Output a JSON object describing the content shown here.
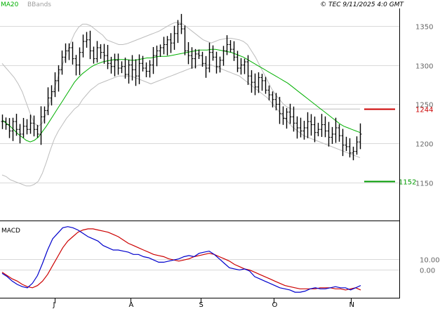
{
  "header": {
    "legend_ma": "MA20",
    "legend_bb": "BBands",
    "copyright": "© TEC 9/11/2025 4:0 GMT"
  },
  "colors": {
    "bars": "#000000",
    "ma20": "#00b000",
    "bbands": "#bdbdbd",
    "macd_line": "#0000cc",
    "signal_line": "#cc0000",
    "resistance": "#cc0000",
    "support": "#009900",
    "grid": "#d9d9d9",
    "frame": "#000000"
  },
  "chart_data": [
    {
      "type": "ohlc",
      "panel": "price",
      "x_labels": [
        "J",
        "A",
        "S",
        "O",
        "N"
      ],
      "yticks": [
        1150,
        1200,
        1250,
        1300,
        1350
      ],
      "ylim": [
        1102,
        1372
      ],
      "grid": true,
      "resistance": {
        "label": "1244",
        "value": 1244
      },
      "support": {
        "label": "1152",
        "value": 1152
      },
      "close": [
        1228,
        1224,
        1216,
        1228,
        1218,
        1212,
        1222,
        1218,
        1226,
        1218,
        1212,
        1234,
        1242,
        1258,
        1266,
        1280,
        1294,
        1310,
        1318,
        1322,
        1308,
        1300,
        1316,
        1330,
        1332,
        1318,
        1308,
        1322,
        1316,
        1312,
        1302,
        1298,
        1306,
        1296,
        1298,
        1288,
        1300,
        1294,
        1286,
        1302,
        1296,
        1292,
        1300,
        1312,
        1318,
        1322,
        1326,
        1332,
        1328,
        1340,
        1352,
        1346,
        1318,
        1312,
        1308,
        1314,
        1312,
        1302,
        1296,
        1316,
        1310,
        1298,
        1306,
        1318,
        1326,
        1320,
        1310,
        1296,
        1300,
        1304,
        1286,
        1278,
        1272,
        1284,
        1280,
        1268,
        1262,
        1256,
        1250,
        1238,
        1232,
        1240,
        1234,
        1226,
        1220,
        1216,
        1220,
        1228,
        1224,
        1214,
        1218,
        1224,
        1216,
        1208,
        1212,
        1220,
        1210,
        1198,
        1196,
        1188,
        1190,
        1202,
        1212
      ],
      "ma20": [
        1230,
        1226,
        1222,
        1217,
        1212,
        1208,
        1204,
        1202,
        1204,
        1208,
        1215,
        1222,
        1230,
        1238,
        1246,
        1254,
        1262,
        1270,
        1278,
        1284,
        1289,
        1293,
        1297,
        1300,
        1302,
        1304,
        1305,
        1306,
        1307,
        1307,
        1307,
        1307,
        1306,
        1306,
        1307,
        1308,
        1309,
        1309,
        1310,
        1311,
        1311,
        1311,
        1312,
        1313,
        1314,
        1315,
        1316,
        1317,
        1318,
        1319,
        1319,
        1319,
        1320,
        1320,
        1319,
        1318,
        1317,
        1316,
        1314,
        1312,
        1310,
        1307,
        1304,
        1301,
        1298,
        1295,
        1292,
        1289,
        1286,
        1283,
        1280,
        1277,
        1273,
        1269,
        1265,
        1261,
        1257,
        1253,
        1249,
        1245,
        1241,
        1237,
        1233,
        1229,
        1225,
        1222,
        1220,
        1218,
        1216,
        1214
      ],
      "bb_upper": [
        1302,
        1296,
        1290,
        1284,
        1276,
        1266,
        1252,
        1238,
        1226,
        1222,
        1226,
        1238,
        1254,
        1270,
        1286,
        1300,
        1314,
        1328,
        1340,
        1348,
        1352,
        1352,
        1350,
        1346,
        1342,
        1338,
        1332,
        1330,
        1328,
        1326,
        1326,
        1327,
        1329,
        1331,
        1333,
        1335,
        1337,
        1339,
        1341,
        1343,
        1346,
        1349,
        1352,
        1354,
        1354,
        1352,
        1348,
        1344,
        1340,
        1336,
        1332,
        1330,
        1328,
        1330,
        1332,
        1333,
        1334,
        1334,
        1333,
        1332,
        1330,
        1326,
        1318,
        1310,
        1300,
        1290,
        1280,
        1270,
        1262,
        1256,
        1250,
        1246,
        1244,
        1244,
        1244,
        1244,
        1244,
        1244,
        1244,
        1244,
        1244,
        1244,
        1244,
        1244,
        1244,
        1244,
        1244,
        1244,
        1244,
        1244
      ],
      "bb_lower": [
        1160,
        1158,
        1154,
        1152,
        1150,
        1148,
        1146,
        1146,
        1148,
        1152,
        1162,
        1176,
        1192,
        1206,
        1216,
        1224,
        1232,
        1238,
        1244,
        1248,
        1256,
        1262,
        1268,
        1272,
        1276,
        1278,
        1280,
        1282,
        1284,
        1286,
        1286,
        1286,
        1286,
        1284,
        1282,
        1280,
        1278,
        1276,
        1278,
        1280,
        1282,
        1284,
        1286,
        1288,
        1290,
        1292,
        1294,
        1296,
        1298,
        1300,
        1300,
        1300,
        1300,
        1298,
        1296,
        1294,
        1292,
        1290,
        1288,
        1286,
        1282,
        1278,
        1274,
        1270,
        1266,
        1262,
        1258,
        1252,
        1246,
        1240,
        1234,
        1228,
        1222,
        1218,
        1214,
        1210,
        1208,
        1206,
        1204,
        1202,
        1200,
        1198,
        1196,
        1194,
        1192,
        1190,
        1188,
        1186,
        1184,
        1182
      ]
    },
    {
      "type": "line",
      "panel": "macd",
      "title": "MACD",
      "yticks": [
        0,
        10
      ],
      "ylim": [
        -25,
        42
      ],
      "series": [
        {
          "values": [
            -2,
            -5,
            -8,
            -10,
            -13,
            -15,
            -16,
            -14,
            -10,
            -4,
            4,
            12,
            20,
            26,
            30,
            34,
            36,
            37,
            37,
            36,
            35,
            34,
            32,
            30,
            27,
            24,
            22,
            20,
            18,
            16,
            14,
            13,
            12,
            10,
            9,
            8,
            9,
            10,
            12,
            13,
            14,
            15,
            14,
            12,
            10,
            8,
            5,
            3,
            1,
            0,
            -2,
            -4,
            -6,
            -8,
            -10,
            -12,
            -14,
            -15,
            -16,
            -17,
            -17,
            -17,
            -17,
            -16,
            -16,
            -16,
            -17,
            -17,
            -18,
            -17,
            -16,
            -18
          ]
        },
        {
          "values": [
            -3,
            -6,
            -10,
            -13,
            -15,
            -16,
            -12,
            -5,
            6,
            18,
            28,
            33,
            38,
            39,
            38,
            36,
            33,
            30,
            28,
            26,
            22,
            20,
            18,
            18,
            17,
            16,
            14,
            14,
            12,
            11,
            9,
            7,
            7,
            8,
            9,
            10,
            12,
            13,
            12,
            15,
            16,
            17,
            14,
            10,
            6,
            2,
            1,
            0,
            1,
            -1,
            -6,
            -8,
            -10,
            -12,
            -14,
            -16,
            -17,
            -18,
            -20,
            -20,
            -19,
            -17,
            -16,
            -17,
            -17,
            -16,
            -15,
            -16,
            -16,
            -18,
            -16,
            -14
          ]
        }
      ]
    }
  ]
}
